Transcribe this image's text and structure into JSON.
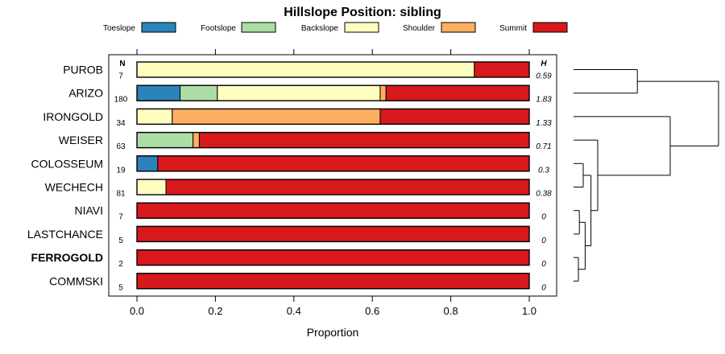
{
  "chart_data": {
    "type": "bar",
    "stacked": "horizontal-proportion",
    "title": "Hillslope Position: sibling",
    "xlabel": "Proportion",
    "ylabel": "",
    "xlim": [
      0,
      1
    ],
    "x_ticks": [
      "0.0",
      "0.2",
      "0.4",
      "0.6",
      "0.8",
      "1.0"
    ],
    "legend_position": "top",
    "n_header": "N",
    "h_header": "H",
    "legend": [
      {
        "name": "Toeslope",
        "color": "#2b83ba"
      },
      {
        "name": "Footslope",
        "color": "#abdda4"
      },
      {
        "name": "Backslope",
        "color": "#ffffbf"
      },
      {
        "name": "Shoulder",
        "color": "#fdae61"
      },
      {
        "name": "Summit",
        "color": "#d7191c"
      }
    ],
    "rows": [
      {
        "label": "PUROB",
        "n": "7",
        "h": "0.59",
        "bold": false,
        "values": [
          0,
          0,
          0.86,
          0,
          0.14
        ]
      },
      {
        "label": "ARIZO",
        "n": "180",
        "h": "1.83",
        "bold": false,
        "values": [
          0.11,
          0.095,
          0.415,
          0.015,
          0.365
        ]
      },
      {
        "label": "IRONGOLD",
        "n": "34",
        "h": "1.33",
        "bold": false,
        "values": [
          0,
          0,
          0.09,
          0.53,
          0.38
        ]
      },
      {
        "label": "WEISER",
        "n": "63",
        "h": "0.71",
        "bold": false,
        "values": [
          0,
          0.143,
          0,
          0.016,
          0.841
        ]
      },
      {
        "label": "COLOSSEUM",
        "n": "19",
        "h": "0.3",
        "bold": false,
        "values": [
          0.053,
          0,
          0,
          0,
          0.947
        ]
      },
      {
        "label": "WECHECH",
        "n": "81",
        "h": "0.38",
        "bold": false,
        "values": [
          0,
          0,
          0.074,
          0,
          0.926
        ]
      },
      {
        "label": "NIAVI",
        "n": "7",
        "h": "0",
        "bold": false,
        "values": [
          0,
          0,
          0,
          0,
          1
        ]
      },
      {
        "label": "LASTCHANCE",
        "n": "5",
        "h": "0",
        "bold": false,
        "values": [
          0,
          0,
          0,
          0,
          1
        ]
      },
      {
        "label": "FERROGOLD",
        "n": "2",
        "h": "0",
        "bold": true,
        "values": [
          0,
          0,
          0,
          0,
          1
        ]
      },
      {
        "label": "COMMSKI",
        "n": "5",
        "h": "0",
        "bold": false,
        "values": [
          0,
          0,
          0,
          0,
          1
        ]
      }
    ],
    "dendrogram": {
      "leaves": [
        "PUROB",
        "ARIZO",
        "IRONGOLD",
        "WEISER",
        "COLOSSEUM",
        "WECHECH",
        "NIAVI",
        "LASTCHANCE",
        "FERROGOLD",
        "COMMSKI"
      ],
      "merges": [
        {
          "a": "NIAVI",
          "b": "LASTCHANCE",
          "height": 0.06
        },
        {
          "a": "FERROGOLD",
          "b": "COMMSKI",
          "height": 0.05
        },
        {
          "a": 0,
          "b": 1,
          "height": 0.12
        },
        {
          "a": "COLOSSEUM",
          "b": "WECHECH",
          "height": 0.1
        },
        {
          "a": 3,
          "b": 2,
          "height": 0.18
        },
        {
          "a": "WEISER",
          "b": 4,
          "height": 0.25
        },
        {
          "a": "IRONGOLD",
          "b": 5,
          "height": 1.0
        },
        {
          "a": "PUROB",
          "b": "ARIZO",
          "height": 0.66
        },
        {
          "a": 7,
          "b": 6,
          "height": 1.5
        }
      ]
    }
  }
}
